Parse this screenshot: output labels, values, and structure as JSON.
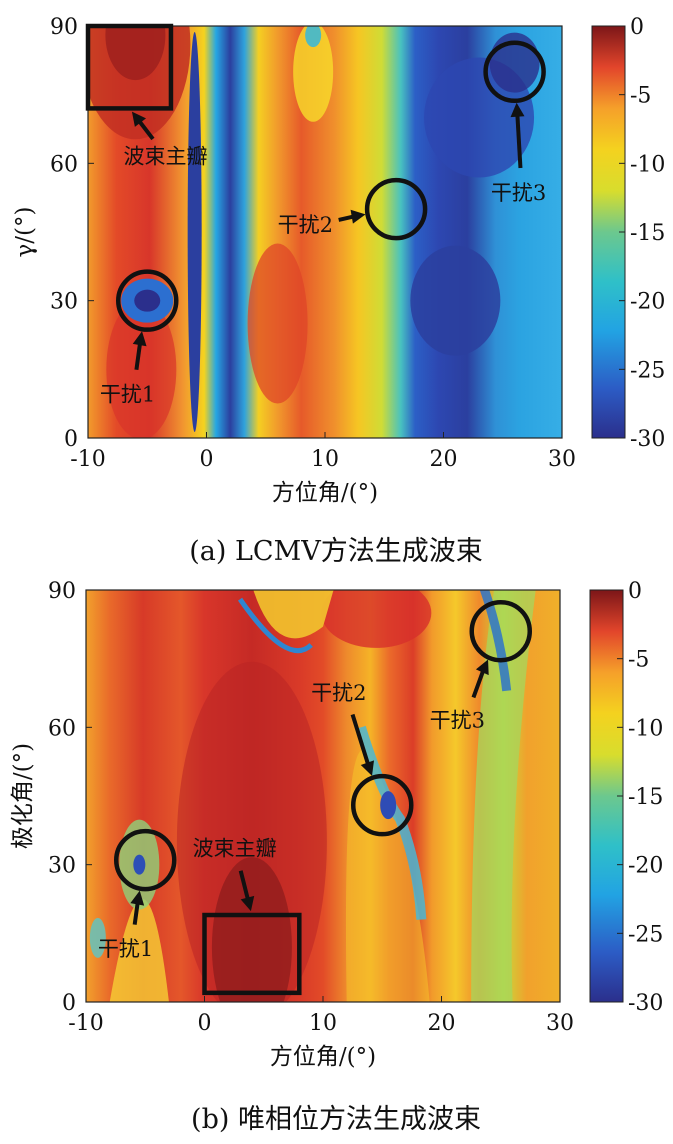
{
  "chart_data": [
    {
      "type": "heatmap",
      "caption": "(a) LCMV方法生成波束",
      "xlabel": "方位角/(°)",
      "ylabel": "γ/(°)",
      "xlim": [
        -10,
        30
      ],
      "ylim": [
        0,
        90
      ],
      "xticks": [
        "-10",
        "0",
        "10",
        "20",
        "30"
      ],
      "xtick_values": [
        -10,
        0,
        10,
        20,
        30
      ],
      "yticks": [
        "0",
        "30",
        "60",
        "90"
      ],
      "ytick_values": [
        0,
        30,
        60,
        90
      ],
      "colorbar": {
        "range": [
          -30,
          0
        ],
        "ticks": [
          "0",
          "-5",
          "-10",
          "-15",
          "-20",
          "-25",
          "-30"
        ],
        "tick_values": [
          0,
          -5,
          -10,
          -15,
          -20,
          -25,
          -30
        ]
      },
      "annotations": [
        {
          "label": "波束主瓣",
          "shape": "rect",
          "x": [
            -10,
            -3
          ],
          "y": [
            72,
            90
          ],
          "label_at": [
            -7,
            60
          ]
        },
        {
          "label": "干扰1",
          "shape": "circle",
          "x": -5,
          "y": 30,
          "label_at": [
            -9,
            8
          ]
        },
        {
          "label": "干扰2",
          "shape": "circle",
          "x": 16,
          "y": 50,
          "label_at": [
            6,
            45
          ]
        },
        {
          "label": "干扰3",
          "shape": "circle",
          "x": 26,
          "y": 80,
          "label_at": [
            24,
            52
          ]
        }
      ]
    },
    {
      "type": "heatmap",
      "caption": "(b) 唯相位方法生成波束",
      "xlabel": "方位角/(°)",
      "ylabel": "极化角/(°)",
      "xlim": [
        -10,
        30
      ],
      "ylim": [
        0,
        90
      ],
      "xticks": [
        "-10",
        "0",
        "10",
        "20",
        "30"
      ],
      "xtick_values": [
        -10,
        0,
        10,
        20,
        30
      ],
      "yticks": [
        "0",
        "30",
        "60",
        "90"
      ],
      "ytick_values": [
        0,
        30,
        60,
        90
      ],
      "colorbar": {
        "range": [
          -30,
          0
        ],
        "ticks": [
          "0",
          "-5",
          "-10",
          "-15",
          "-20",
          "-25",
          "-30"
        ],
        "tick_values": [
          0,
          -5,
          -10,
          -15,
          -20,
          -25,
          -30
        ]
      },
      "annotations": [
        {
          "label": "波束主瓣",
          "shape": "rect",
          "x": [
            0,
            8
          ],
          "y": [
            2,
            19
          ],
          "label_at": [
            -1,
            32
          ]
        },
        {
          "label": "干扰1",
          "shape": "circle",
          "x": -5,
          "y": 31,
          "label_at": [
            -9,
            10
          ]
        },
        {
          "label": "干扰2",
          "shape": "circle",
          "x": 15,
          "y": 43,
          "label_at": [
            9,
            66
          ]
        },
        {
          "label": "干扰3",
          "shape": "circle",
          "x": 25,
          "y": 81,
          "label_at": [
            19,
            60
          ]
        }
      ]
    }
  ]
}
